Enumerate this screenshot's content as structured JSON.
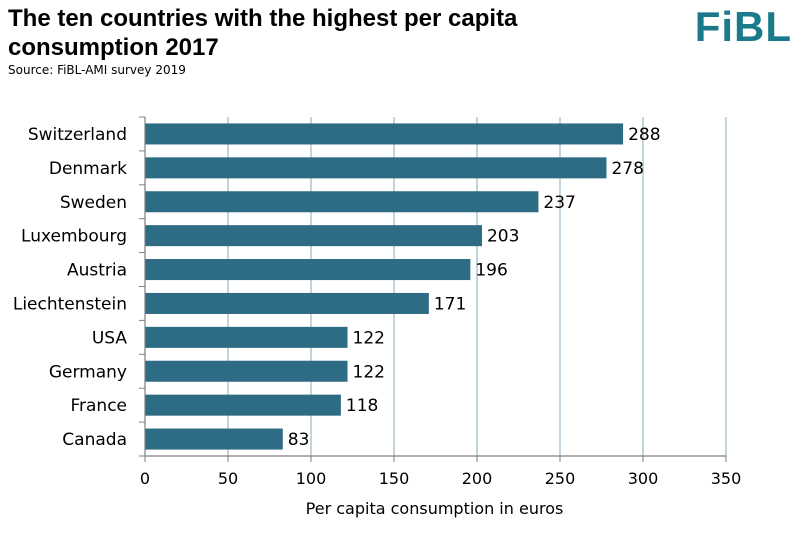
{
  "header": {
    "title": "The ten countries with the highest per capita consumption 2017",
    "source": "Source: FiBL-AMI survey 2019",
    "logo_text": "FiBL",
    "logo_color": "#1a7a8c"
  },
  "colors": {
    "bar": "#2e6b84",
    "grid": "#8aa9b8",
    "axis": "#7f7f7f"
  },
  "chart_data": {
    "type": "bar",
    "orientation": "horizontal",
    "categories": [
      "Switzerland",
      "Denmark",
      "Sweden",
      "Luxembourg",
      "Austria",
      "Liechtenstein",
      "USA",
      "Germany",
      "France",
      "Canada"
    ],
    "values": [
      288,
      278,
      237,
      203,
      196,
      171,
      122,
      122,
      118,
      83
    ],
    "xlabel": "Per capita consumption in euros",
    "ylabel": "",
    "xlim": [
      0,
      350
    ],
    "xticks": [
      0,
      50,
      100,
      150,
      200,
      250,
      300,
      350
    ],
    "grid": "vertical"
  }
}
